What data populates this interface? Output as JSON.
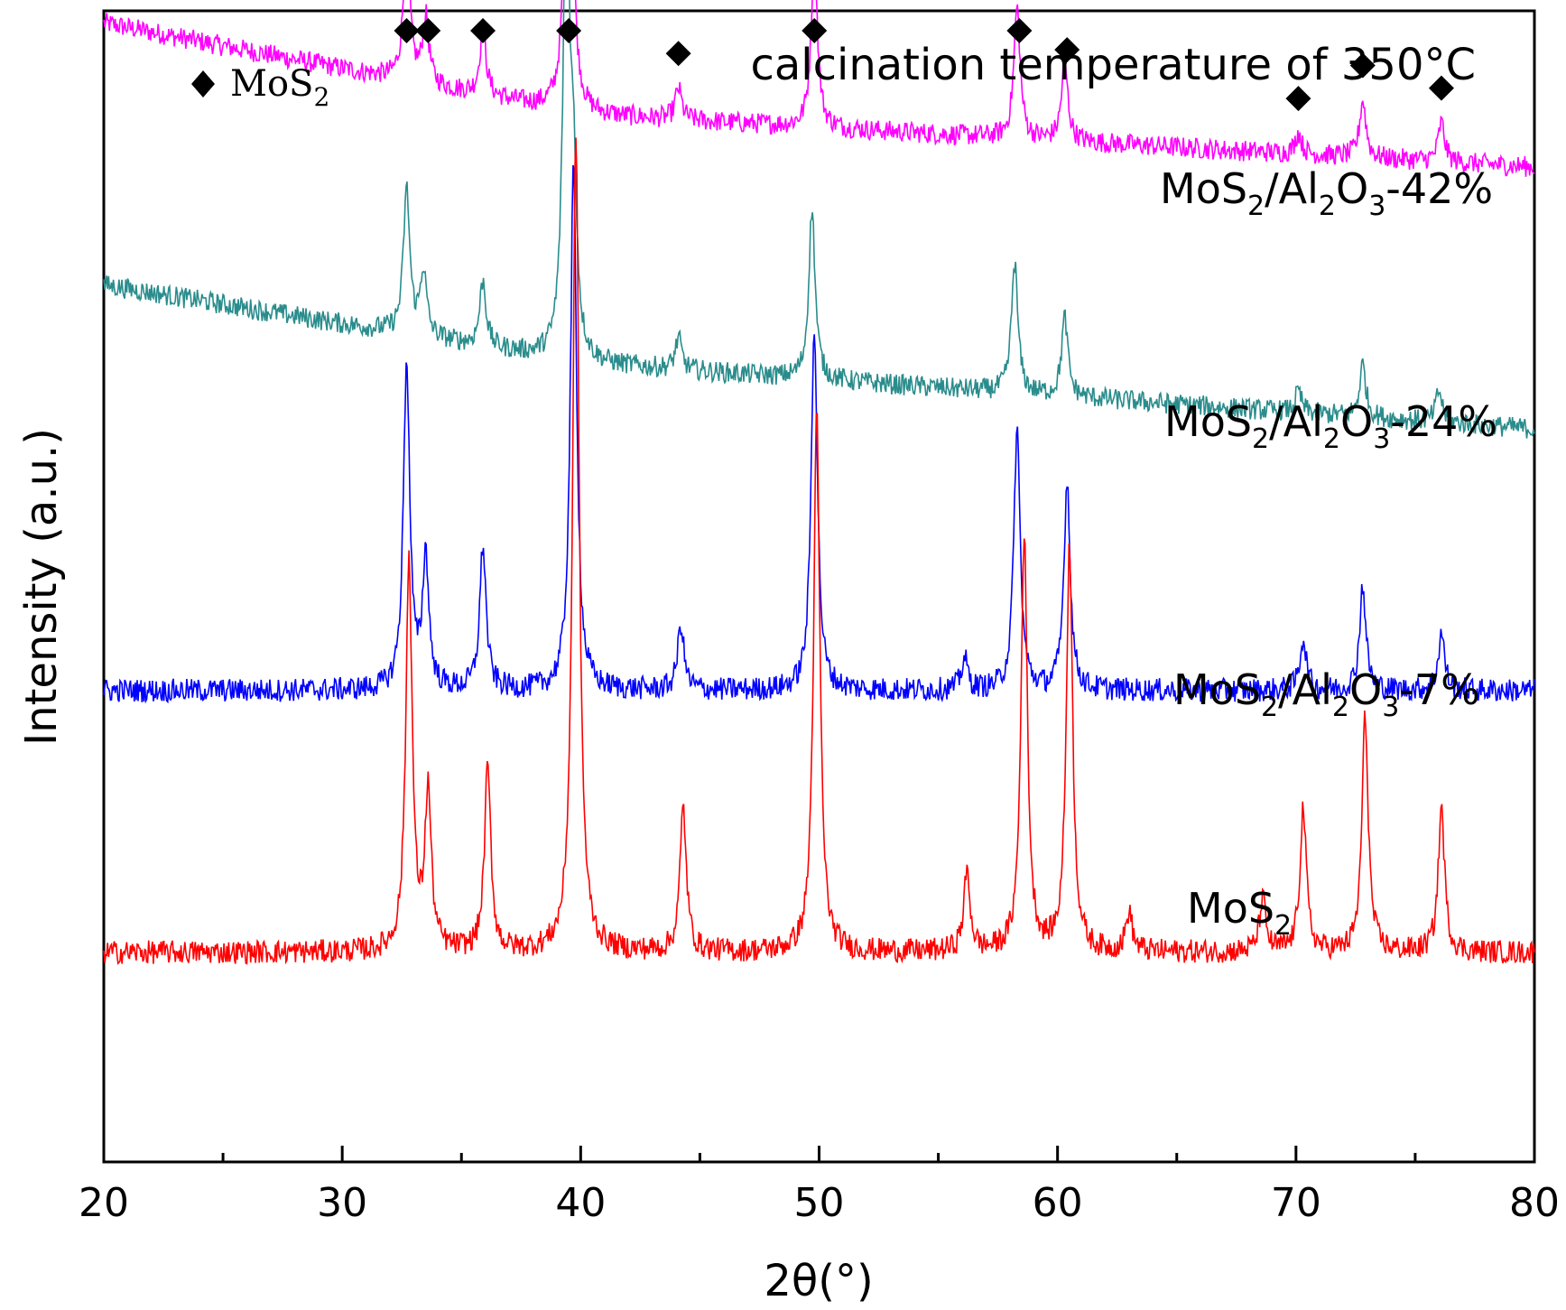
{
  "chart_data": {
    "type": "line",
    "title": "calcination temperature of 350°C",
    "xlabel": "2θ(°)",
    "ylabel": "Intensity (a.u.)",
    "xlim": [
      20,
      80
    ],
    "x_ticks": [
      20,
      30,
      40,
      50,
      60,
      70,
      80
    ],
    "grid": false,
    "legend": {
      "marker": "diamond",
      "label": "MoS",
      "label_sub": "2",
      "placement": "top-left"
    },
    "marker_positions": [
      32.7,
      33.6,
      35.9,
      39.5,
      44.1,
      49.8,
      58.4,
      60.4,
      70.1,
      72.8,
      76.1
    ],
    "series": [
      {
        "name": "MoS2/Al2O3-42%",
        "label_parts": [
          "MoS",
          "2",
          "/Al",
          "2",
          "O",
          "3",
          "-42%"
        ],
        "color": "#ff00ff",
        "offset": 3.0,
        "baseline": [
          [
            20,
            0.55
          ],
          [
            40,
            0.2
          ],
          [
            80,
            0.0
          ]
        ],
        "noise": 0.08,
        "peaks": [
          [
            32.7,
            0.55
          ],
          [
            33.5,
            0.25
          ],
          [
            35.9,
            0.25
          ],
          [
            39.5,
            1.75
          ],
          [
            44.1,
            0.12
          ],
          [
            49.8,
            0.65
          ],
          [
            58.3,
            0.5
          ],
          [
            60.3,
            0.3
          ],
          [
            70.1,
            0.08
          ],
          [
            72.8,
            0.22
          ],
          [
            76.1,
            0.15
          ]
        ]
      },
      {
        "name": "MoS2/Al2O3-24%",
        "label_parts": [
          "MoS",
          "2",
          "/Al",
          "2",
          "O",
          "3",
          "-24%"
        ],
        "color": "#2a8c8c",
        "offset": 2.0,
        "baseline": [
          [
            20,
            0.55
          ],
          [
            40,
            0.25
          ],
          [
            80,
            0.0
          ]
        ],
        "noise": 0.08,
        "peaks": [
          [
            32.7,
            0.55
          ],
          [
            33.4,
            0.25
          ],
          [
            35.9,
            0.25
          ],
          [
            39.4,
            1.85
          ],
          [
            39.7,
            0.6
          ],
          [
            44.1,
            0.12
          ],
          [
            49.7,
            0.65
          ],
          [
            58.2,
            0.5
          ],
          [
            60.3,
            0.3
          ],
          [
            70.1,
            0.08
          ],
          [
            72.8,
            0.2
          ],
          [
            76.0,
            0.12
          ]
        ]
      },
      {
        "name": "MoS2/Al2O3-7%",
        "label_parts": [
          "MoS",
          "2",
          "/Al",
          "2",
          "O",
          "3",
          "-7%"
        ],
        "color": "#0000ff",
        "offset": 1.0,
        "baseline": [
          [
            20,
            0.0
          ],
          [
            80,
            0.0
          ]
        ],
        "noise": 0.09,
        "peaks": [
          [
            32.7,
            1.25
          ],
          [
            33.5,
            0.5
          ],
          [
            35.9,
            0.55
          ],
          [
            39.7,
            2.0
          ],
          [
            44.2,
            0.25
          ],
          [
            49.8,
            1.4
          ],
          [
            56.1,
            0.12
          ],
          [
            58.3,
            1.0
          ],
          [
            60.4,
            0.8
          ],
          [
            70.3,
            0.2
          ],
          [
            72.8,
            0.4
          ],
          [
            76.1,
            0.22
          ]
        ]
      },
      {
        "name": "MoS2",
        "label_parts": [
          "MoS",
          "2"
        ],
        "color": "#ff0000",
        "offset": 0.0,
        "baseline": [
          [
            20,
            0.0
          ],
          [
            80,
            0.0
          ]
        ],
        "noise": 0.09,
        "peaks": [
          [
            32.8,
            1.5
          ],
          [
            33.6,
            0.6
          ],
          [
            36.1,
            0.7
          ],
          [
            39.8,
            3.15
          ],
          [
            44.3,
            0.55
          ],
          [
            49.9,
            2.05
          ],
          [
            56.2,
            0.3
          ],
          [
            58.6,
            1.6
          ],
          [
            60.5,
            1.55
          ],
          [
            63.0,
            0.15
          ],
          [
            68.6,
            0.2
          ],
          [
            70.3,
            0.55
          ],
          [
            72.9,
            0.9
          ],
          [
            76.1,
            0.55
          ]
        ]
      }
    ]
  }
}
